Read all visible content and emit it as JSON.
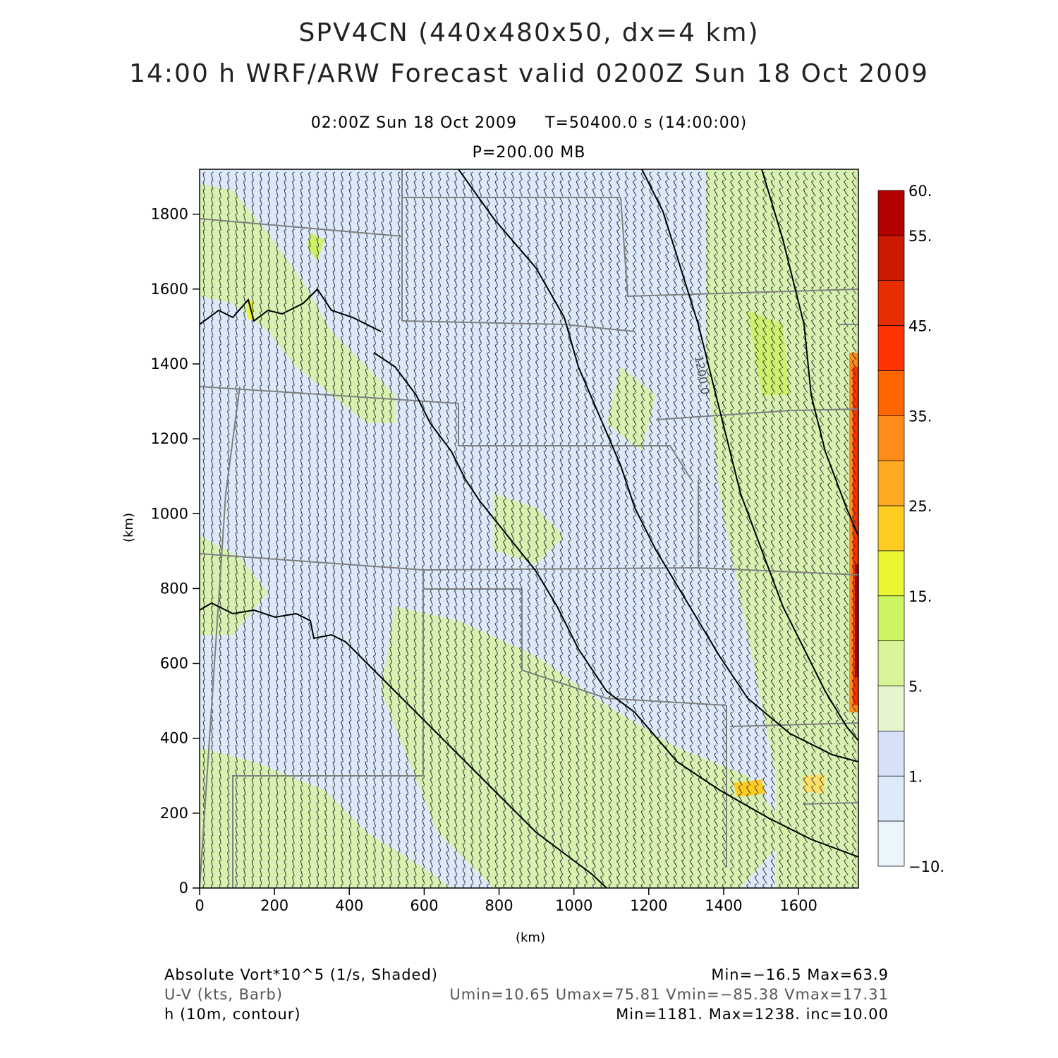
{
  "header": {
    "title_line1": "SPV4CN (440x480x50, dx=4 km)",
    "title_line2": "14:00 h WRF/ARW Forecast valid 0200Z Sun 18 Oct 2009",
    "valid_time": "02:00Z Sun 18 Oct 2009     T=50400.0 s (14:00:00)",
    "level": "P=200.00 MB"
  },
  "axes": {
    "x_unit": "(km)",
    "y_unit": "(km)",
    "x_ticks": [
      "0",
      "200",
      "400",
      "600",
      "800",
      "1000",
      "1200",
      "1400",
      "1600"
    ],
    "y_ticks": [
      "0",
      "200",
      "400",
      "600",
      "800",
      "1000",
      "1200",
      "1400",
      "1600",
      "1800"
    ],
    "x_range": [
      0,
      1760
    ],
    "y_range": [
      0,
      1920
    ]
  },
  "colorbar": {
    "labels": [
      "60.",
      "55.",
      "45.",
      "35.",
      "25.",
      "15.",
      "5.",
      "1.",
      "−10."
    ],
    "colors": [
      "#b30000",
      "#cc1a00",
      "#e62e00",
      "#ff3300",
      "#ff6600",
      "#ff8c1a",
      "#ffaa22",
      "#ffcc22",
      "#eaf533",
      "#ccf566",
      "#d8f599",
      "#e6f5cc",
      "#d6e0f7",
      "#dcebfa",
      "#eaf5fc"
    ]
  },
  "map": {
    "contour_label": "1200.0",
    "background_color": "#dbe9fa",
    "wind_barb_color": "#333333",
    "contour_color": "#000000",
    "state_line_color": "#808080"
  },
  "footer": {
    "field1_label": "Absolute Vort*10^5 (1/s, Shaded)",
    "field1_stats": "Min=−16.5 Max=63.9",
    "field2_label": "U-V (kts, Barb)",
    "field2_stats": "Umin=10.65 Umax=75.81 Vmin=−85.38 Vmax=17.31",
    "field3_label": "h (10m, contour)",
    "field3_stats": "Min=1181. Max=1238. inc=10.00"
  }
}
